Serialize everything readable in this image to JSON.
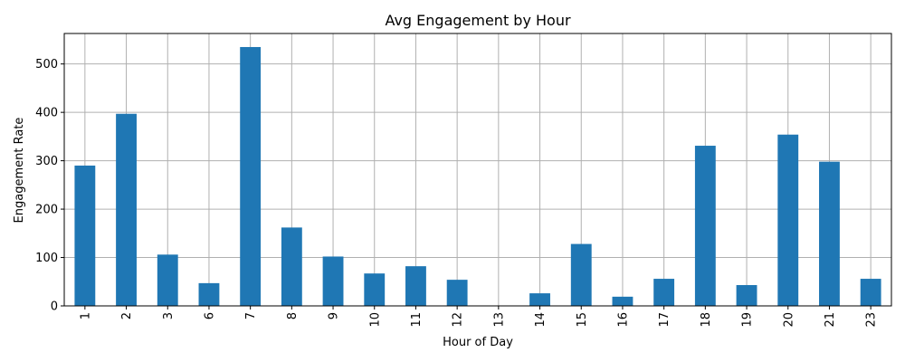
{
  "chart_data": {
    "type": "bar",
    "title": "Avg Engagement by Hour",
    "xlabel": "Hour of Day",
    "ylabel": "Engagement Rate",
    "categories": [
      "1",
      "2",
      "3",
      "6",
      "7",
      "8",
      "9",
      "10",
      "11",
      "12",
      "13",
      "14",
      "15",
      "16",
      "17",
      "18",
      "19",
      "20",
      "21",
      "23"
    ],
    "values": [
      290,
      397,
      106,
      47,
      535,
      162,
      102,
      67,
      82,
      54,
      0,
      26,
      128,
      19,
      56,
      331,
      43,
      354,
      298,
      56
    ],
    "ylim": [
      0,
      563
    ],
    "yticks": [
      0,
      100,
      200,
      300,
      400,
      500
    ],
    "grid": true,
    "bar_color": "#1f77b4",
    "grid_color": "#b0b0b0"
  }
}
